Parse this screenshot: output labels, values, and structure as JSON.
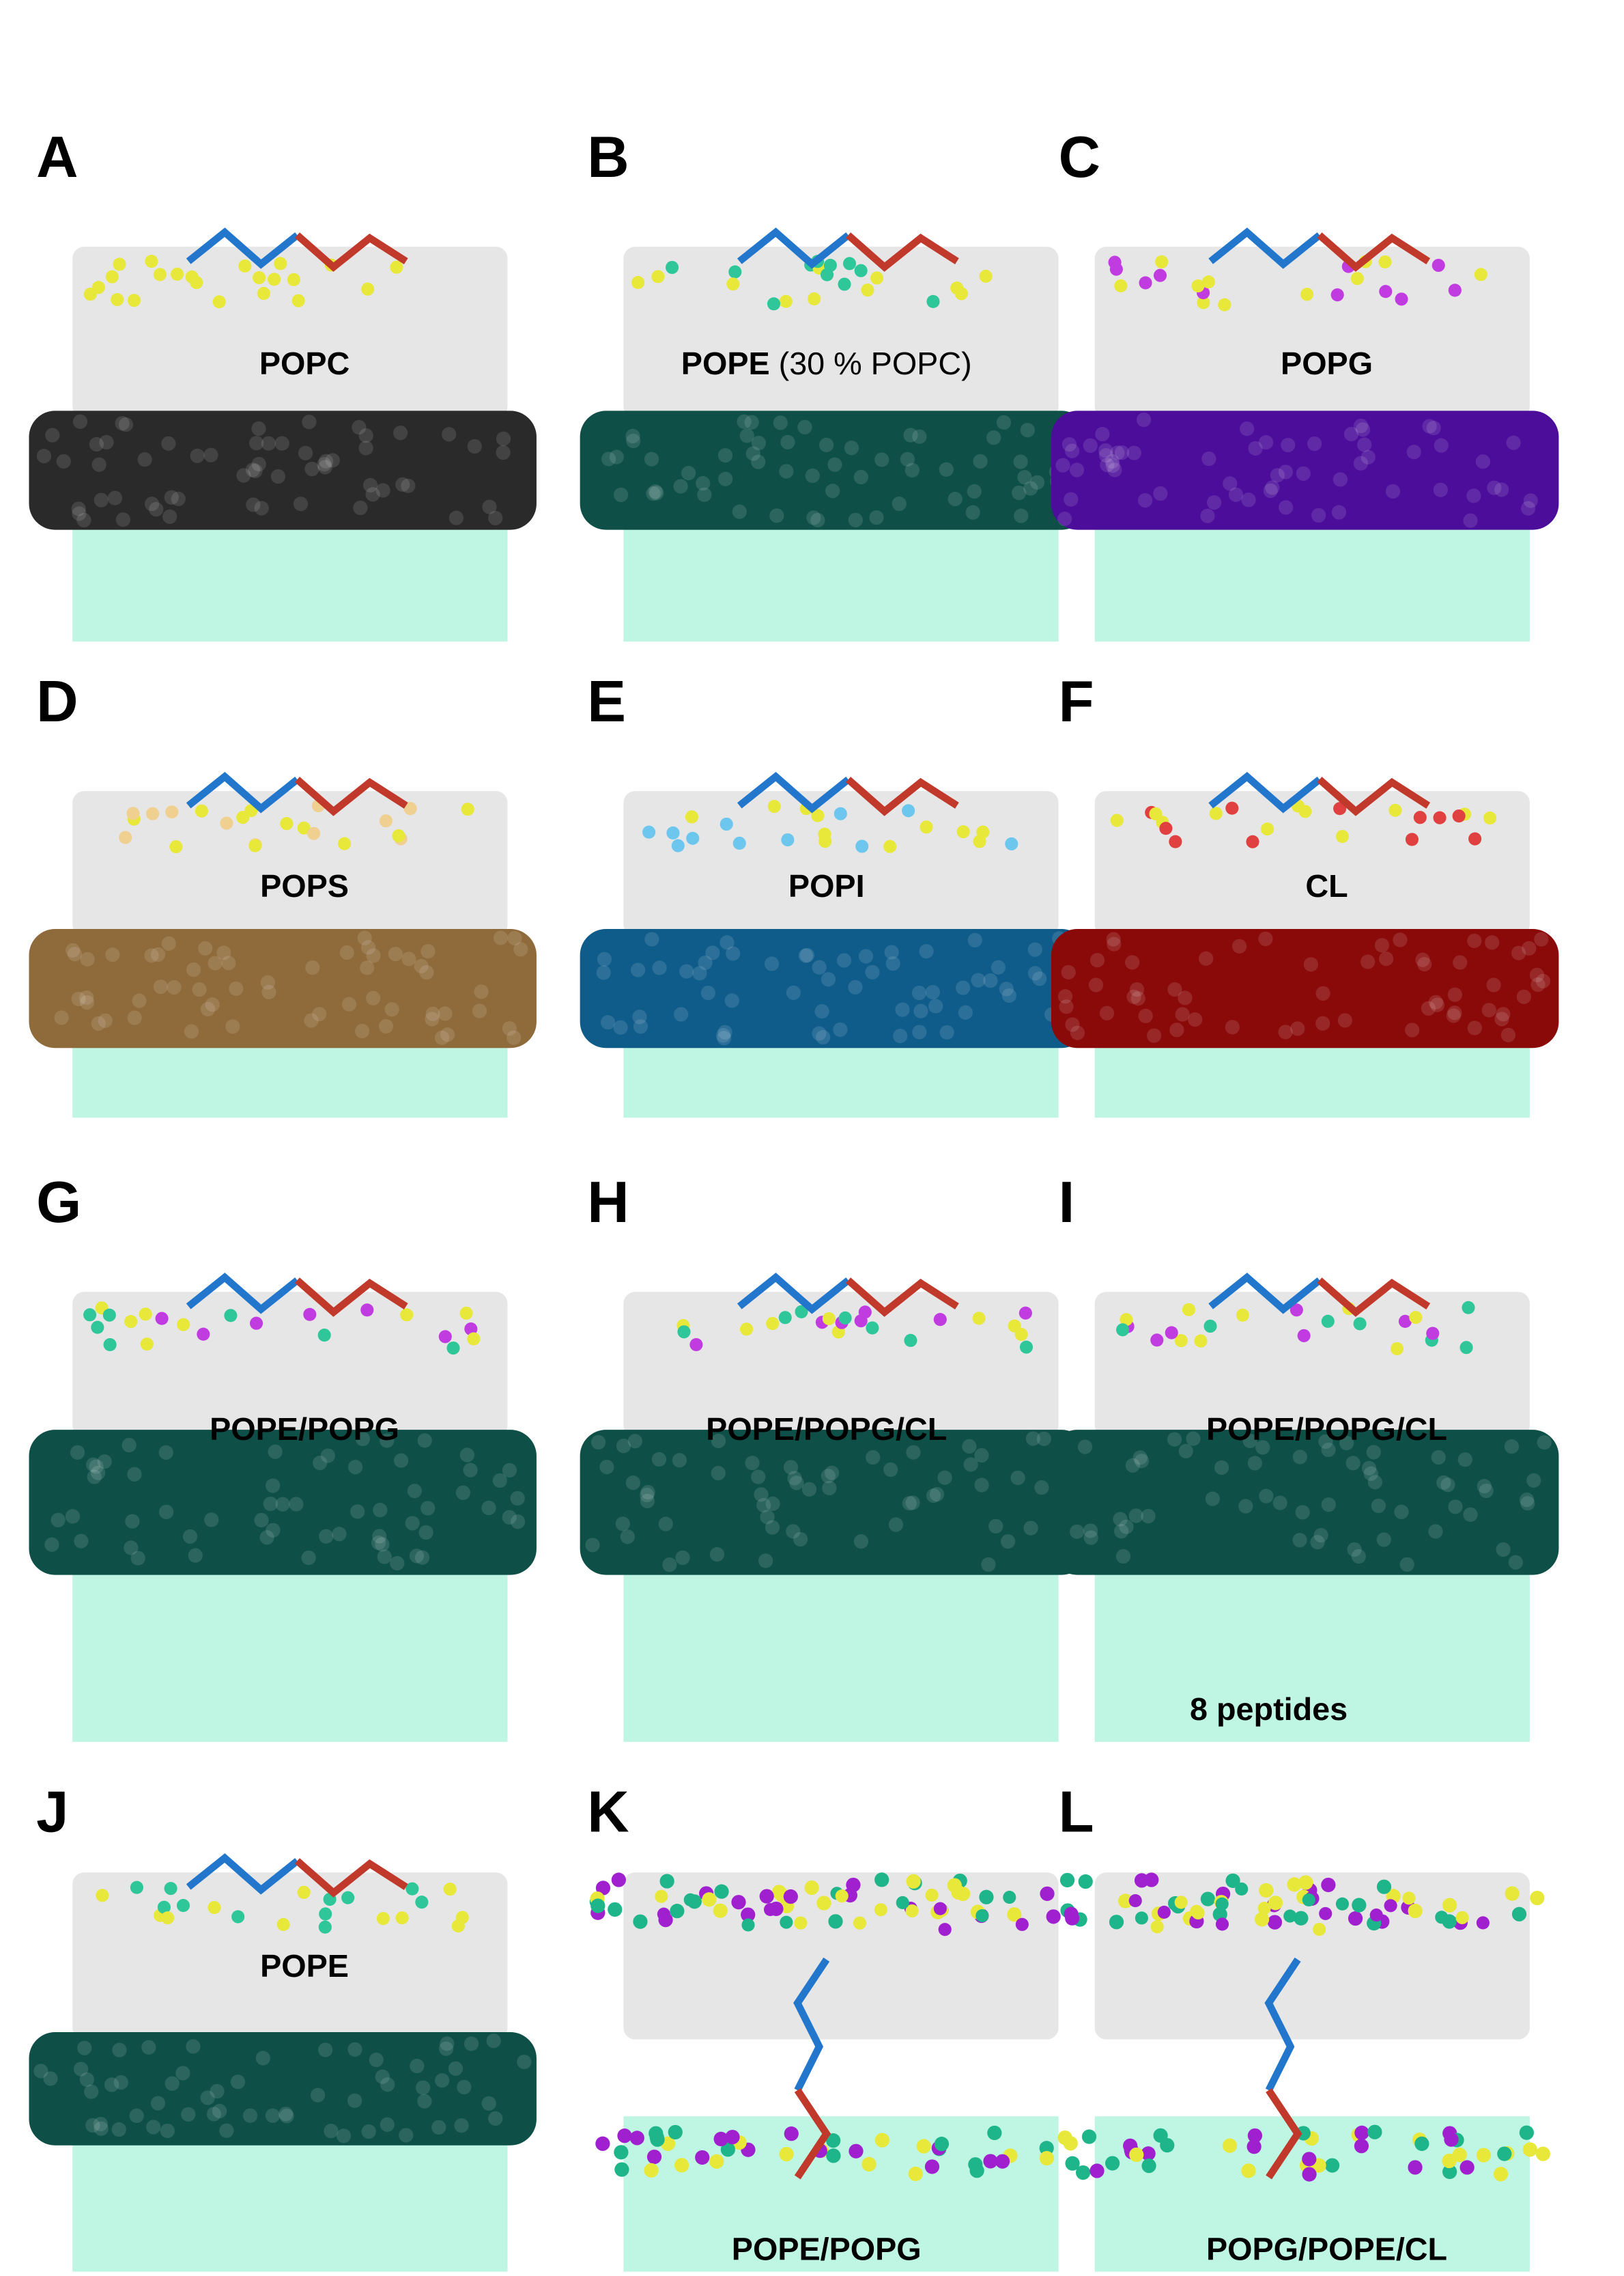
{
  "panels": [
    {
      "letter": "A",
      "label": "POPC"
    },
    {
      "letter": "B",
      "label": "POPE",
      "label_note": "(30 % POPC)"
    },
    {
      "letter": "C",
      "label": "POPG"
    },
    {
      "letter": "D",
      "label": "POPS"
    },
    {
      "letter": "E",
      "label": "POPI"
    },
    {
      "letter": "F",
      "label": "CL"
    },
    {
      "letter": "G",
      "label": "POPE/POPG"
    },
    {
      "letter": "H",
      "label": "POPE/POPG/CL"
    },
    {
      "letter": "I",
      "label": "POPE/POPG/CL",
      "annotation": "8 peptides"
    },
    {
      "letter": "J",
      "label": "POPE"
    },
    {
      "letter": "K",
      "label": "POPE/POPG"
    },
    {
      "letter": "L",
      "label": "POPG/POPE/CL"
    }
  ]
}
